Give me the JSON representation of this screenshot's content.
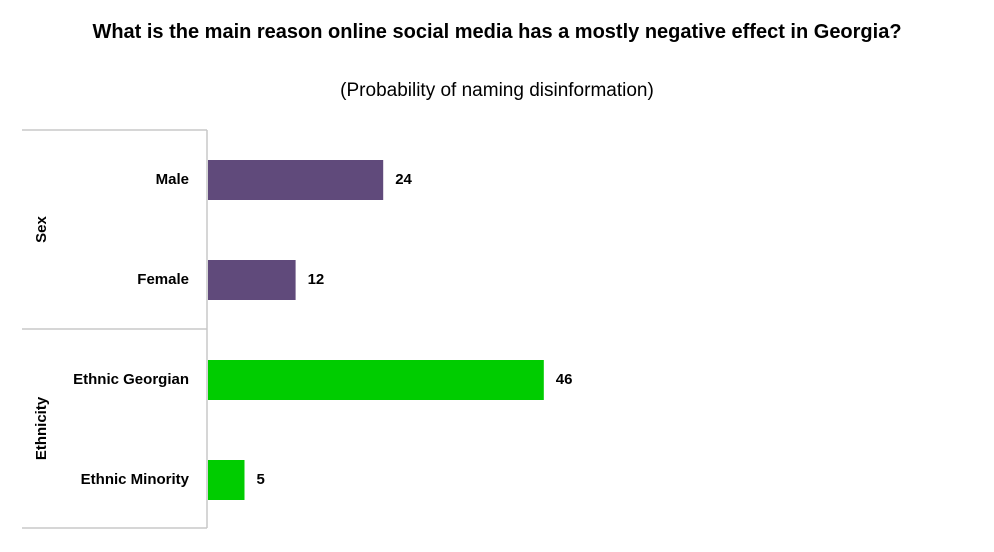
{
  "chart_data": {
    "type": "bar",
    "orientation": "horizontal",
    "title": "What is the main reason online social media has a mostly negative effect in Georgia?",
    "subtitle": "(Probability of naming disinformation)",
    "groups": [
      {
        "name": "Sex",
        "color": "#604a7b",
        "categories": [
          "Male",
          "Female"
        ],
        "values": [
          24,
          12
        ]
      },
      {
        "name": "Ethnicity",
        "color": "#00cc00",
        "categories": [
          "Ethnic Georgian",
          "Ethnic Minority"
        ],
        "values": [
          46,
          5
        ]
      }
    ],
    "xlim": [
      0,
      100
    ],
    "grid": false,
    "legend": "none"
  }
}
